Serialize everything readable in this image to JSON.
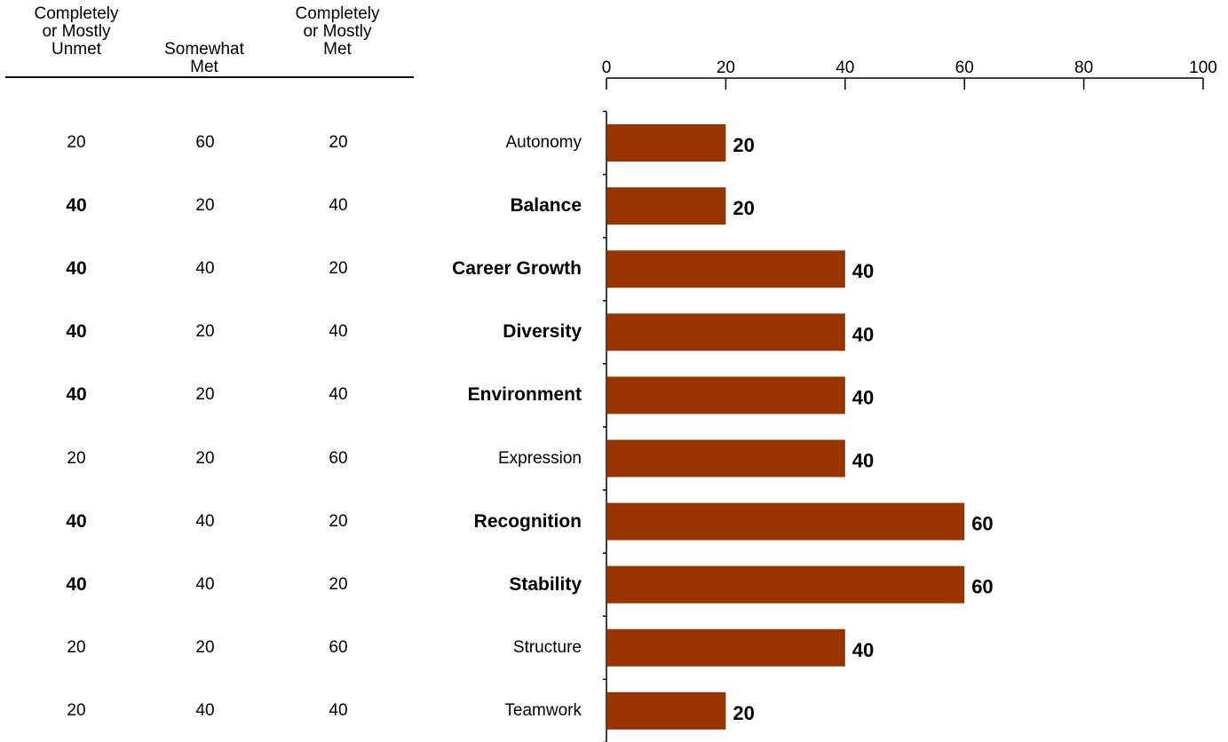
{
  "table": {
    "columns": [
      {
        "lines": [
          "Completely",
          "or Mostly",
          "Unmet"
        ]
      },
      {
        "lines": [
          "Somewhat",
          "Met"
        ]
      },
      {
        "lines": [
          "Completely",
          "or Mostly",
          "Met"
        ]
      }
    ]
  },
  "chart_data": {
    "type": "bar",
    "orientation": "horizontal",
    "categories": [
      "Autonomy",
      "Balance",
      "Career Growth",
      "Diversity",
      "Environment",
      "Expression",
      "Recognition",
      "Stability",
      "Structure",
      "Teamwork"
    ],
    "category_bold": [
      false,
      true,
      true,
      true,
      true,
      false,
      true,
      true,
      false,
      false
    ],
    "values": [
      20,
      20,
      40,
      40,
      40,
      40,
      60,
      60,
      40,
      20
    ],
    "value_labels": [
      "20",
      "20",
      "40",
      "40",
      "40",
      "40",
      "60",
      "60",
      "40",
      "20"
    ],
    "xlim": [
      0,
      100
    ],
    "x_ticks": [
      0,
      20,
      40,
      60,
      80,
      100
    ],
    "x_tick_labels": [
      "0",
      "20",
      "40",
      "60",
      "80",
      "100"
    ],
    "axis_position": "top",
    "bar_color": "#993300",
    "grid": false,
    "legend": "none",
    "title": "",
    "xlabel": "",
    "ylabel": ""
  },
  "rows": [
    {
      "cells": [
        "20",
        "60",
        "20"
      ],
      "bold": [
        false,
        false,
        false
      ]
    },
    {
      "cells": [
        "40",
        "20",
        "40"
      ],
      "bold": [
        true,
        false,
        false
      ]
    },
    {
      "cells": [
        "40",
        "40",
        "20"
      ],
      "bold": [
        true,
        false,
        false
      ]
    },
    {
      "cells": [
        "40",
        "20",
        "40"
      ],
      "bold": [
        true,
        false,
        false
      ]
    },
    {
      "cells": [
        "40",
        "20",
        "40"
      ],
      "bold": [
        true,
        false,
        false
      ]
    },
    {
      "cells": [
        "20",
        "20",
        "60"
      ],
      "bold": [
        false,
        false,
        false
      ]
    },
    {
      "cells": [
        "40",
        "40",
        "20"
      ],
      "bold": [
        true,
        false,
        false
      ]
    },
    {
      "cells": [
        "40",
        "40",
        "20"
      ],
      "bold": [
        true,
        false,
        false
      ]
    },
    {
      "cells": [
        "20",
        "20",
        "60"
      ],
      "bold": [
        false,
        false,
        false
      ]
    },
    {
      "cells": [
        "20",
        "40",
        "40"
      ],
      "bold": [
        false,
        false,
        false
      ]
    }
  ]
}
